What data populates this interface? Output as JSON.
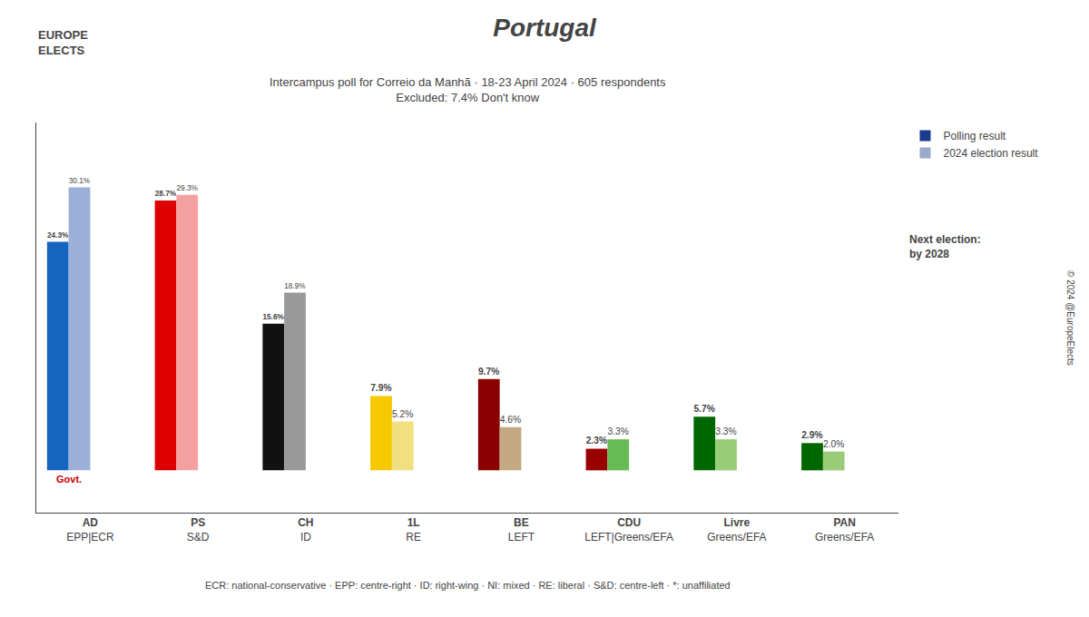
{
  "chart_data": {
    "type": "bar",
    "title": "Portugal",
    "subtitle": [
      "Intercampus poll for Correio da Manhã · 18-23 April 2024 · 605 respondents",
      "Excluded: 7.4% Don't know"
    ],
    "categories": [
      "AD\nEPP|ECR",
      "PS\nS&D",
      "CH\nID",
      "1L\nRE",
      "BE\nLEFT",
      "CDU\nLEFT|Greens/EFA",
      "Livre\nGreens/EFA",
      "PAN\nGreens/EFA"
    ],
    "series": [
      {
        "name": "Polling result",
        "color": "#1a3a8c",
        "colors": [
          "#1565c0",
          "#dd0000",
          "#111111",
          "#f5c800",
          "#8b0000",
          "#990000",
          "#006600",
          "#006600"
        ],
        "values": [
          24.3,
          28.7,
          15.6,
          7.9,
          9.7,
          2.3,
          5.7,
          2.9
        ],
        "value_labels": [
          "24.3%",
          "28.7%",
          "15.6%",
          "7.9%",
          "9.7%",
          "2.3%",
          "5.7%",
          "2.9%"
        ]
      },
      {
        "name": "2024 election result",
        "color": "#99aacc",
        "colors": [
          "#9bafd9",
          "#f5a0a0",
          "#999999",
          "#f0e080",
          "#c4a882",
          "#66bb55",
          "#99cc77",
          "#99cc77"
        ],
        "values": [
          30.1,
          29.3,
          18.9,
          5.2,
          4.6,
          3.3,
          3.3,
          2.0
        ],
        "value_labels": [
          "30.1%",
          "29.3%",
          "18.9%",
          "5.2%",
          "4.6%",
          "3.3%",
          "3.3%",
          "2.0%"
        ]
      }
    ],
    "ylim": [
      -4.5,
      37
    ],
    "yticks": [],
    "tick_labels": "x",
    "grid": false,
    "legend": "upper right",
    "data_labels": true,
    "footnote": "ECR: national-conservative · EPP: centre-right · ID: right-wing · NI: mixed · RE: liberal · S&D: centre-left · *: unaffiliated",
    "annotations": [
      {
        "text": "Govt.",
        "category": "AD\nEPP|ECR",
        "series": "Polling result",
        "color": "#cc0000"
      },
      {
        "text": "Next election:\nby 2028"
      },
      {
        "text": "© 2024 @EuropeElects"
      },
      {
        "text": "EUROPE\nELECTS"
      }
    ]
  }
}
